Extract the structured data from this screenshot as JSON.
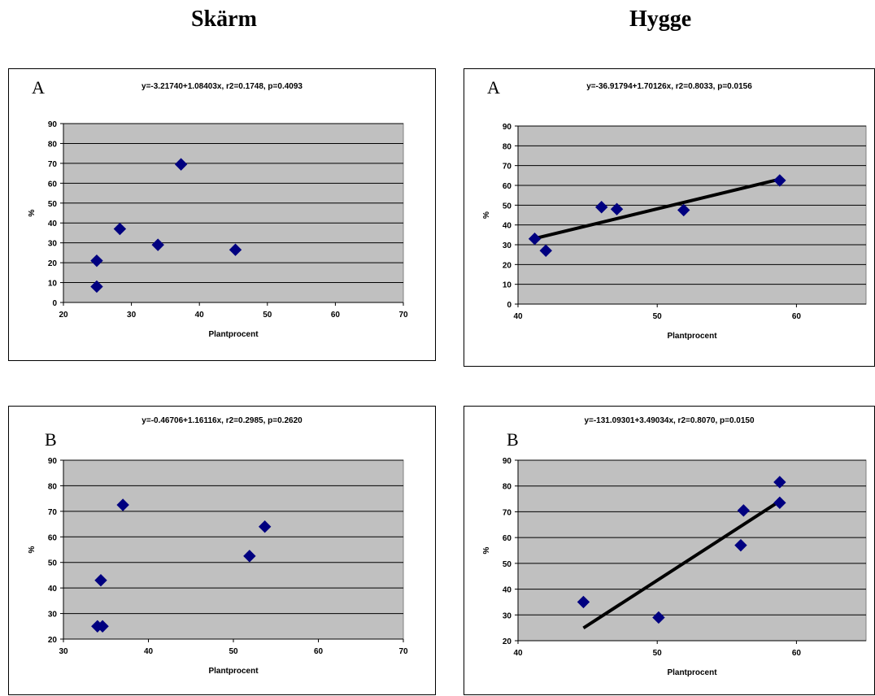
{
  "columns": {
    "left": "Skärm",
    "right": "Hygge"
  },
  "colors": {
    "plot_bg": "#C0C0C0",
    "marker": "#000080",
    "trend": "#000000",
    "grid": "#000000"
  },
  "chart_data": [
    {
      "type": "scatter",
      "letter": "A",
      "equation": "y=-3.21740+1.08403x, r2=0.1748, p=0.4093",
      "xlabel": "Plantprocent",
      "ylabel": "%",
      "xlim": [
        20,
        70
      ],
      "ylim": [
        0,
        90
      ],
      "xticks": [
        20,
        30,
        40,
        50,
        60,
        70
      ],
      "yticks": [
        0,
        10,
        20,
        30,
        40,
        50,
        60,
        70,
        80,
        90
      ],
      "grid": true,
      "trendline": false,
      "points": [
        [
          24.9,
          8
        ],
        [
          24.9,
          21
        ],
        [
          28.3,
          37
        ],
        [
          33.9,
          29
        ],
        [
          37.3,
          69.5
        ],
        [
          45.3,
          26.5
        ]
      ]
    },
    {
      "type": "scatter",
      "letter": "A",
      "equation": "y=-36.91794+1.70126x, r2=0.8033, p=0.0156",
      "xlabel": "Plantprocent",
      "ylabel": "%",
      "xlim": [
        40,
        65
      ],
      "ylim": [
        0,
        90
      ],
      "xticks": [
        40,
        50,
        60
      ],
      "yticks": [
        0,
        10,
        20,
        30,
        40,
        50,
        60,
        70,
        80,
        90
      ],
      "grid": true,
      "trendline": true,
      "points": [
        [
          41.2,
          33
        ],
        [
          42,
          27
        ],
        [
          46,
          49
        ],
        [
          47.1,
          48
        ],
        [
          51.9,
          47.5
        ],
        [
          58.8,
          62.5
        ]
      ]
    },
    {
      "type": "scatter",
      "letter": "B",
      "equation": "y=-0.46706+1.16116x, r2=0.2985, p=0.2620",
      "xlabel": "Plantprocent",
      "ylabel": "%",
      "xlim": [
        30,
        70
      ],
      "ylim": [
        20,
        90
      ],
      "xticks": [
        30,
        40,
        50,
        60,
        70
      ],
      "yticks": [
        20,
        30,
        40,
        50,
        60,
        70,
        80,
        90
      ],
      "grid": true,
      "trendline": false,
      "points": [
        [
          34,
          25
        ],
        [
          34.6,
          25
        ],
        [
          34.4,
          43
        ],
        [
          37,
          72.5
        ],
        [
          51.9,
          52.5
        ],
        [
          53.7,
          64
        ]
      ]
    },
    {
      "type": "scatter",
      "letter": "B",
      "equation": "y=-131.09301+3.49034x, r2=0.8070, p=0.0150",
      "xlabel": "Plantprocent",
      "ylabel": "%",
      "xlim": [
        40,
        65
      ],
      "ylim": [
        20,
        90
      ],
      "xticks": [
        40,
        50,
        60
      ],
      "yticks": [
        20,
        30,
        40,
        50,
        60,
        70,
        80,
        90
      ],
      "grid": true,
      "trendline": true,
      "points": [
        [
          44.7,
          35
        ],
        [
          50.1,
          29
        ],
        [
          56,
          57
        ],
        [
          56.2,
          70.5
        ],
        [
          58.8,
          81.5
        ],
        [
          58.8,
          73.5
        ]
      ]
    }
  ]
}
